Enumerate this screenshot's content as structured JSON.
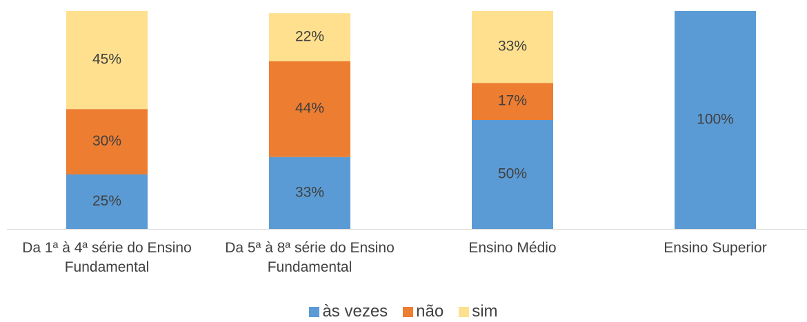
{
  "chart_data": {
    "type": "stacked_bar",
    "categories": [
      "Da 1ª à 4ª série do Ensino Fundamental",
      "Da 5ª à 8ª série do Ensino Fundamental",
      "Ensino Médio",
      "Ensino Superior"
    ],
    "series": [
      {
        "name": "às vezes",
        "color": "#5b9bd5",
        "values": [
          25,
          33,
          50,
          100
        ],
        "value_labels": [
          "25%",
          "33%",
          "50%",
          "100%"
        ]
      },
      {
        "name": "não",
        "color": "#ed7d31",
        "values": [
          30,
          44,
          17,
          0
        ],
        "value_labels": [
          "30%",
          "44%",
          "17%",
          null
        ]
      },
      {
        "name": "sim",
        "color": "#ffe08f",
        "values": [
          45,
          22,
          33,
          0
        ],
        "value_labels": [
          "45%",
          "22%",
          "33%",
          null
        ]
      }
    ],
    "ylim": [
      0,
      100
    ],
    "legend": "bottom"
  }
}
